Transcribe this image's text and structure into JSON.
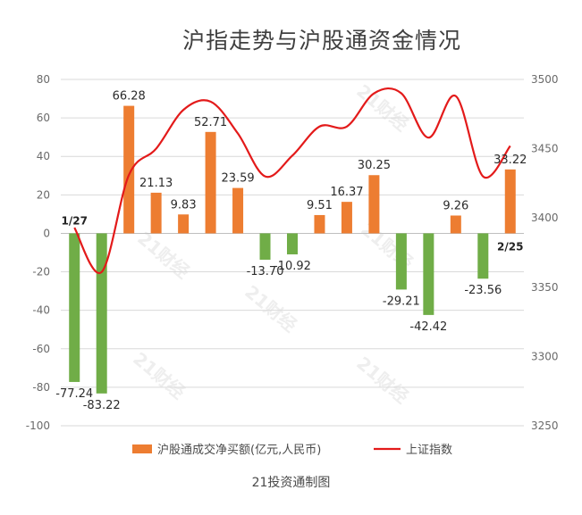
{
  "title": "沪指走势与沪股通资金情况",
  "source": "21投资通制图",
  "watermark": "21财经",
  "colors": {
    "positive": "#ED7D31",
    "negative": "#70AD47",
    "line": "#E31A1A",
    "grid": "#D9D9D9"
  },
  "chart_data": {
    "type": "bar",
    "title": "沪指走势与沪股通资金情况",
    "grid": true,
    "legend_position": "bottom",
    "y_left": {
      "min": -100,
      "max": 80,
      "step": 20,
      "ticks": [
        "80",
        "60",
        "40",
        "20",
        "0",
        "-20",
        "-40",
        "-60",
        "-80",
        "-100"
      ]
    },
    "y_right": {
      "min": 3250,
      "max": 3500,
      "step": 50,
      "ticks": [
        "3500",
        "3450",
        "3400",
        "3350",
        "3300",
        "3250"
      ]
    },
    "series": [
      {
        "name": "沪股通成交净买额(亿元,人民币)",
        "type": "bar",
        "axis": "left",
        "values": [
          -77.24,
          -83.22,
          66.28,
          21.13,
          9.83,
          52.71,
          23.59,
          -13.7,
          -10.92,
          9.51,
          16.37,
          30.25,
          -29.21,
          -42.42,
          9.26,
          -23.56,
          33.22
        ],
        "labels": [
          "-77.24",
          "-83.22",
          "66.28",
          "21.13",
          "9.83",
          "52.71",
          "23.59",
          "-13.70",
          "-10.92",
          "9.51",
          "16.37",
          "30.25",
          "-29.21",
          "-42.42",
          "9.26",
          "-23.56",
          "33.22"
        ]
      },
      {
        "name": "上证指数",
        "type": "line",
        "axis": "right",
        "values": [
          3393,
          3361,
          3431,
          3450,
          3478,
          3484,
          3461,
          3430,
          3445,
          3466,
          3466,
          3490,
          3490,
          3458,
          3488,
          3430,
          3452
        ]
      }
    ],
    "annotations": {
      "start": "1/27",
      "end": "2/25"
    }
  }
}
